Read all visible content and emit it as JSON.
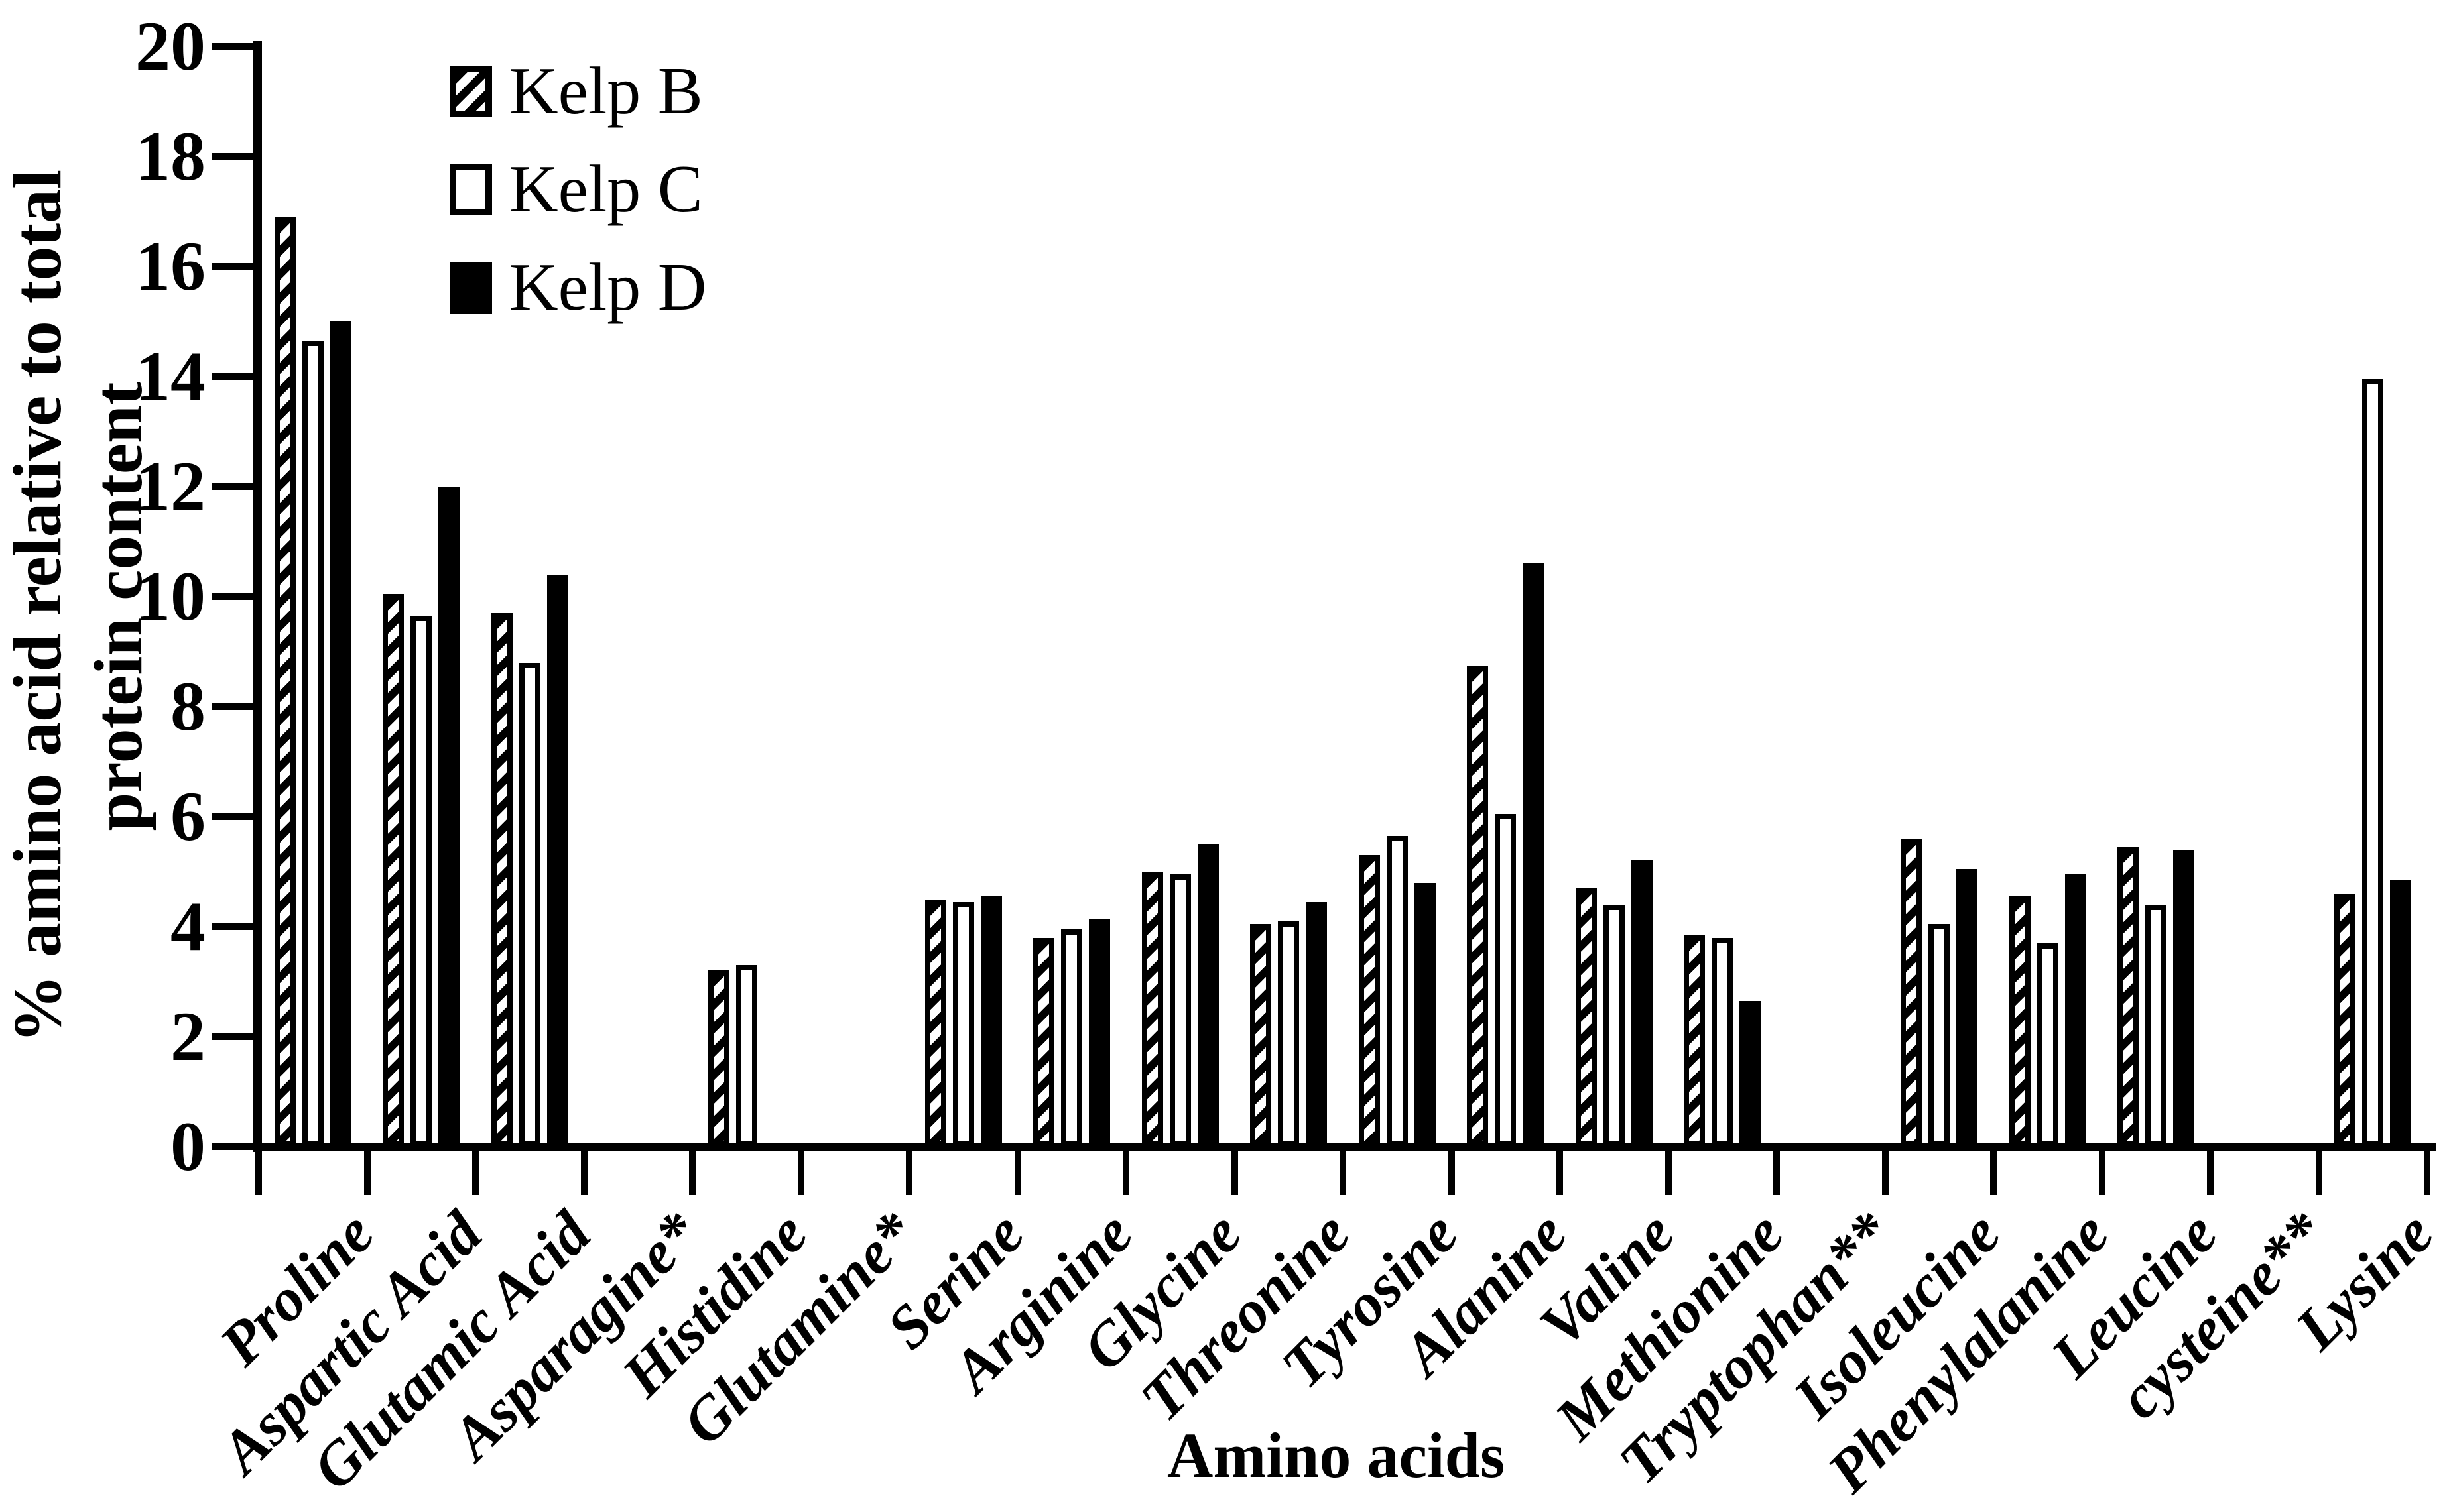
{
  "figure": {
    "y_axis": {
      "title_line1": "% amino acid relative to total",
      "title_line2": "protein content",
      "min": 0,
      "max": 20,
      "tick_step": 2,
      "tick_labels": [
        "0",
        "2",
        "4",
        "6",
        "8",
        "10",
        "12",
        "14",
        "16",
        "18",
        "20"
      ]
    },
    "x_axis": {
      "title": "Amino acids"
    },
    "legend": [
      "Kelp B",
      "Kelp C",
      "Kelp D"
    ],
    "colors": {
      "foreground": "#000000",
      "background": "#ffffff"
    }
  },
  "chart_data": {
    "type": "bar",
    "title": "",
    "xlabel": "Amino acids",
    "ylabel": "% amino acid relative to total protein content",
    "ylim": [
      0,
      20
    ],
    "grid": false,
    "legend_position": "upper-left",
    "bar_styles": [
      "diagonal-hatch",
      "open-white",
      "solid-black"
    ],
    "categories": [
      "Proline",
      "Aspartic Acid",
      "Glutamic Acid",
      "Asparagine*",
      "Histidine",
      "Glutamine*",
      "Serine",
      "Arginine",
      "Glycine",
      "Threonine",
      "Tyrosine",
      "Alanine",
      "Valine",
      "Methionine",
      "Tryptophan**",
      "Isoleucine",
      "Phenylalanine",
      "Leucine",
      "cysteine**",
      "Lysine"
    ],
    "series": [
      {
        "name": "Kelp B",
        "values": [
          16.9,
          10.05,
          9.7,
          0,
          3.2,
          0,
          4.5,
          3.8,
          5.0,
          4.05,
          5.3,
          8.75,
          4.7,
          3.85,
          0,
          5.6,
          4.55,
          5.45,
          0,
          4.6
        ]
      },
      {
        "name": "Kelp C",
        "values": [
          14.65,
          9.65,
          8.8,
          0,
          3.3,
          0,
          4.45,
          3.95,
          4.95,
          4.1,
          5.65,
          6.05,
          4.4,
          3.8,
          0,
          4.05,
          3.7,
          4.4,
          0,
          13.95
        ]
      },
      {
        "name": "Kelp D",
        "values": [
          15.0,
          12.0,
          10.4,
          0,
          0,
          0,
          4.55,
          4.15,
          5.5,
          4.45,
          4.8,
          10.6,
          5.2,
          2.65,
          0,
          5.05,
          4.95,
          5.4,
          0,
          4.85
        ]
      }
    ]
  }
}
